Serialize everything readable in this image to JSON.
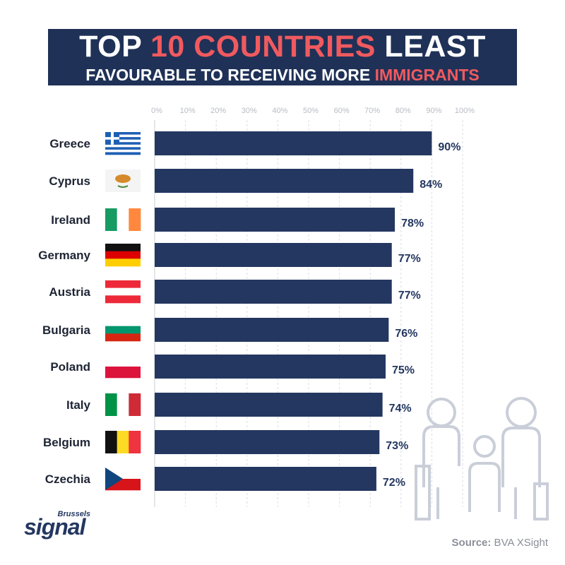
{
  "title": {
    "line1_pre": "TOP ",
    "line1_accent": "10 COUNTRIES",
    "line1_post": " LEAST",
    "line2_pre": "FAVOURABLE TO RECEIVING MORE ",
    "line2_accent": "IMMIGRANTS"
  },
  "colors": {
    "bar": "#243761",
    "accent": "#f05a5f",
    "title_bg": "#1f3157"
  },
  "chart_data": {
    "type": "bar",
    "orientation": "horizontal",
    "categories": [
      "Greece",
      "Cyprus",
      "Ireland",
      "Germany",
      "Austria",
      "Bulgaria",
      "Poland",
      "Italy",
      "Belgium",
      "Czechia"
    ],
    "values": [
      90,
      84,
      78,
      77,
      77,
      76,
      75,
      74,
      73,
      72
    ],
    "value_labels": [
      "90%",
      "84%",
      "78%",
      "77%",
      "77%",
      "76%",
      "75%",
      "74%",
      "73%",
      "72%"
    ],
    "flags": [
      "greece-flag",
      "cyprus-flag",
      "ireland-flag",
      "germany-flag",
      "austria-flag",
      "bulgaria-flag",
      "poland-flag",
      "italy-flag",
      "belgium-flag",
      "czechia-flag"
    ],
    "ticks": [
      "0%",
      "10%",
      "20%",
      "30%",
      "40%",
      "50%",
      "60%",
      "70%",
      "80%",
      "90%",
      "100%"
    ],
    "xlim": [
      0,
      100
    ],
    "grid": true
  },
  "logo": {
    "top": "Brussels",
    "main": "signal"
  },
  "source": {
    "label": "Source:",
    "value": " BVA XSight"
  }
}
